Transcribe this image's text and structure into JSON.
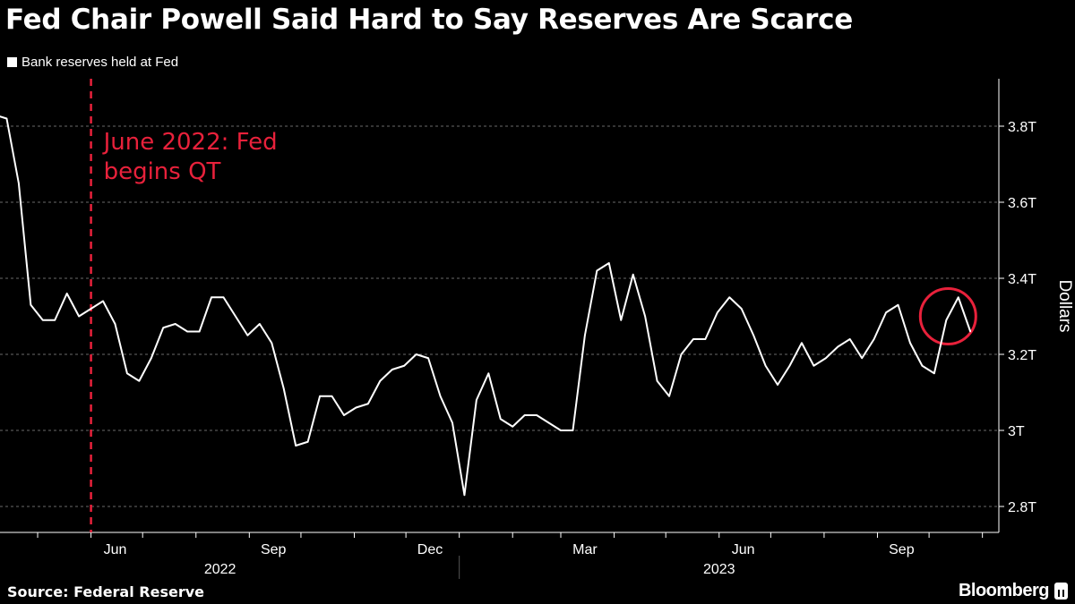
{
  "title": "Fed Chair Powell Said Hard to Say Reserves Are Scarce",
  "legend": {
    "label": "Bank reserves held at Fed",
    "color": "#ffffff"
  },
  "source": "Source: Federal Reserve",
  "brand": "Bloomberg",
  "chart_data": {
    "type": "line",
    "title": "Fed Chair Powell Said Hard to Say Reserves Are Scarce",
    "ylabel": "Dollars",
    "ylim": [
      2.73,
      3.92
    ],
    "y_ticks": [
      {
        "value": 2.8,
        "label": "2.8T"
      },
      {
        "value": 3.0,
        "label": "3T"
      },
      {
        "value": 3.2,
        "label": "3.2T"
      },
      {
        "value": 3.4,
        "label": "3.4T"
      },
      {
        "value": 3.6,
        "label": "3.6T"
      },
      {
        "value": 3.8,
        "label": "3.8T"
      }
    ],
    "y_axis_position": "right",
    "grid": true,
    "x_tick_labels": [
      {
        "date": "2022-06-15",
        "label": "Jun"
      },
      {
        "date": "2022-09-15",
        "label": "Sep"
      },
      {
        "date": "2022-12-15",
        "label": "Dec"
      },
      {
        "date": "2023-03-15",
        "label": "Mar"
      },
      {
        "date": "2023-06-15",
        "label": "Jun"
      },
      {
        "date": "2023-09-15",
        "label": "Sep"
      }
    ],
    "x_year_labels": [
      {
        "date": "2022-08-15",
        "label": "2022"
      },
      {
        "date": "2023-06-01",
        "label": "2023"
      }
    ],
    "xlim": [
      "2022-04-09",
      "2023-11-10"
    ],
    "series": [
      {
        "name": "Bank reserves held at Fed",
        "color": "#ffffff",
        "unit": "trillion USD",
        "x": [
          "2022-04-06",
          "2022-04-13",
          "2022-04-20",
          "2022-04-27",
          "2022-05-04",
          "2022-05-11",
          "2022-05-18",
          "2022-05-25",
          "2022-06-01",
          "2022-06-08",
          "2022-06-15",
          "2022-06-22",
          "2022-06-29",
          "2022-07-06",
          "2022-07-13",
          "2022-07-20",
          "2022-07-27",
          "2022-08-03",
          "2022-08-10",
          "2022-08-17",
          "2022-08-24",
          "2022-08-31",
          "2022-09-07",
          "2022-09-14",
          "2022-09-21",
          "2022-09-28",
          "2022-10-05",
          "2022-10-12",
          "2022-10-19",
          "2022-10-26",
          "2022-11-02",
          "2022-11-09",
          "2022-11-16",
          "2022-11-23",
          "2022-11-30",
          "2022-12-07",
          "2022-12-14",
          "2022-12-21",
          "2022-12-28",
          "2023-01-04",
          "2023-01-11",
          "2023-01-18",
          "2023-01-25",
          "2023-02-01",
          "2023-02-08",
          "2023-02-15",
          "2023-02-22",
          "2023-03-01",
          "2023-03-08",
          "2023-03-15",
          "2023-03-22",
          "2023-03-29",
          "2023-04-05",
          "2023-04-12",
          "2023-04-19",
          "2023-04-26",
          "2023-05-03",
          "2023-05-10",
          "2023-05-17",
          "2023-05-24",
          "2023-05-31",
          "2023-06-07",
          "2023-06-14",
          "2023-06-21",
          "2023-06-28",
          "2023-07-05",
          "2023-07-12",
          "2023-07-19",
          "2023-07-26",
          "2023-08-02",
          "2023-08-09",
          "2023-08-16",
          "2023-08-23",
          "2023-08-30",
          "2023-09-06",
          "2023-09-13",
          "2023-09-20",
          "2023-09-27",
          "2023-10-04",
          "2023-10-11",
          "2023-10-18",
          "2023-10-25"
        ],
        "values": [
          3.83,
          3.82,
          3.65,
          3.33,
          3.29,
          3.29,
          3.36,
          3.3,
          3.32,
          3.34,
          3.28,
          3.15,
          3.13,
          3.19,
          3.27,
          3.28,
          3.26,
          3.26,
          3.35,
          3.35,
          3.3,
          3.25,
          3.28,
          3.23,
          3.11,
          2.96,
          2.97,
          3.09,
          3.09,
          3.04,
          3.06,
          3.07,
          3.13,
          3.16,
          3.17,
          3.2,
          3.19,
          3.09,
          3.02,
          2.83,
          3.08,
          3.15,
          3.03,
          3.01,
          3.04,
          3.04,
          3.02,
          3.0,
          3.0,
          3.25,
          3.42,
          3.44,
          3.29,
          3.41,
          3.3,
          3.13,
          3.09,
          3.2,
          3.24,
          3.24,
          3.31,
          3.35,
          3.32,
          3.25,
          3.17,
          3.12,
          3.17,
          3.23,
          3.17,
          3.19,
          3.22,
          3.24,
          3.19,
          3.24,
          3.31,
          3.33,
          3.23,
          3.17,
          3.15,
          3.29,
          3.35,
          3.26
        ]
      }
    ],
    "annotations": [
      {
        "type": "vertical-dashed-line",
        "date": "2022-06-01",
        "text_line1": "June 2022: Fed",
        "text_line2": "begins QT",
        "color": "#e8213b"
      },
      {
        "type": "circle",
        "date": "2023-10-11",
        "value": 3.3,
        "color": "#e8213b"
      }
    ]
  }
}
